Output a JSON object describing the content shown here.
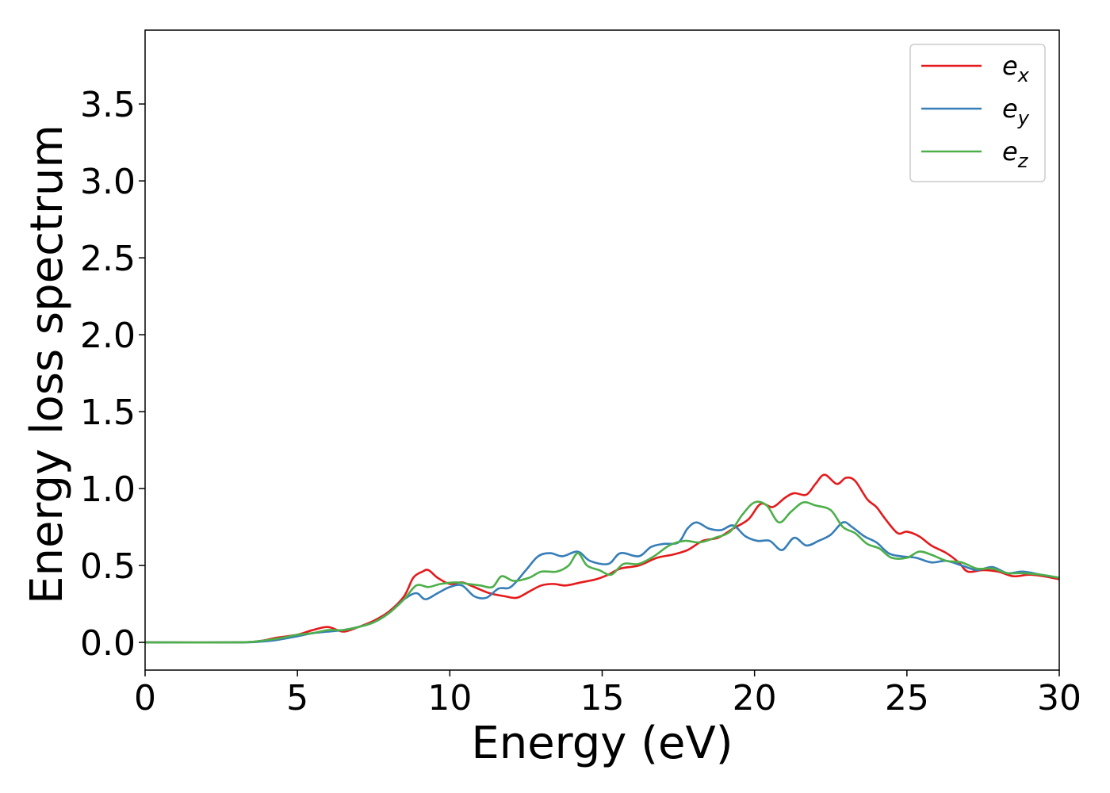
{
  "chart_data": {
    "type": "line",
    "xlabel": "Energy (eV)",
    "ylabel": "Energy loss spectrum",
    "xlim": [
      0,
      30
    ],
    "ylim": [
      -0.18,
      3.98
    ],
    "xticks": [
      0,
      5,
      10,
      15,
      20,
      25,
      30
    ],
    "yticks": [
      0.0,
      0.5,
      1.0,
      1.5,
      2.0,
      2.5,
      3.0,
      3.5
    ],
    "xtick_labels": [
      "0",
      "5",
      "10",
      "15",
      "20",
      "25",
      "30"
    ],
    "ytick_labels": [
      "0.0",
      "0.5",
      "1.0",
      "1.5",
      "2.0",
      "2.5",
      "3.0",
      "3.5"
    ],
    "grid": false,
    "legend_position": "top-right",
    "series": [
      {
        "name": "e",
        "subscript": "x",
        "color": "#e41a1c",
        "points": [
          [
            0,
            0
          ],
          [
            3,
            0
          ],
          [
            3.8,
            0.01
          ],
          [
            4.3,
            0.03
          ],
          [
            5,
            0.05
          ],
          [
            5.5,
            0.08
          ],
          [
            6,
            0.1
          ],
          [
            6.5,
            0.07
          ],
          [
            7,
            0.1
          ],
          [
            7.5,
            0.14
          ],
          [
            8,
            0.2
          ],
          [
            8.5,
            0.3
          ],
          [
            8.8,
            0.42
          ],
          [
            9.1,
            0.46
          ],
          [
            9.3,
            0.47
          ],
          [
            9.6,
            0.42
          ],
          [
            10,
            0.38
          ],
          [
            10.4,
            0.39
          ],
          [
            10.8,
            0.36
          ],
          [
            11.3,
            0.32
          ],
          [
            11.8,
            0.3
          ],
          [
            12.2,
            0.29
          ],
          [
            12.6,
            0.33
          ],
          [
            13,
            0.37
          ],
          [
            13.4,
            0.38
          ],
          [
            13.8,
            0.37
          ],
          [
            14.3,
            0.39
          ],
          [
            14.8,
            0.41
          ],
          [
            15.2,
            0.44
          ],
          [
            15.6,
            0.48
          ],
          [
            16.2,
            0.5
          ],
          [
            16.8,
            0.55
          ],
          [
            17.3,
            0.57
          ],
          [
            17.8,
            0.6
          ],
          [
            18.3,
            0.66
          ],
          [
            18.8,
            0.68
          ],
          [
            19.3,
            0.74
          ],
          [
            19.8,
            0.8
          ],
          [
            20.2,
            0.9
          ],
          [
            20.6,
            0.88
          ],
          [
            21,
            0.94
          ],
          [
            21.3,
            0.97
          ],
          [
            21.7,
            0.96
          ],
          [
            22,
            1.03
          ],
          [
            22.3,
            1.09
          ],
          [
            22.7,
            1.03
          ],
          [
            23,
            1.07
          ],
          [
            23.3,
            1.05
          ],
          [
            23.7,
            0.93
          ],
          [
            24,
            0.88
          ],
          [
            24.3,
            0.8
          ],
          [
            24.7,
            0.71
          ],
          [
            25,
            0.72
          ],
          [
            25.4,
            0.69
          ],
          [
            25.8,
            0.63
          ],
          [
            26.3,
            0.58
          ],
          [
            26.7,
            0.52
          ],
          [
            27,
            0.46
          ],
          [
            27.5,
            0.47
          ],
          [
            28,
            0.46
          ],
          [
            28.5,
            0.43
          ],
          [
            29,
            0.44
          ],
          [
            29.5,
            0.43
          ],
          [
            30,
            0.41
          ]
        ]
      },
      {
        "name": "e",
        "subscript": "y",
        "color": "#377eb8",
        "points": [
          [
            0,
            0
          ],
          [
            3,
            0
          ],
          [
            3.8,
            0.005
          ],
          [
            4.3,
            0.015
          ],
          [
            5,
            0.04
          ],
          [
            5.5,
            0.06
          ],
          [
            6,
            0.07
          ],
          [
            6.5,
            0.08
          ],
          [
            7,
            0.1
          ],
          [
            7.5,
            0.13
          ],
          [
            8,
            0.19
          ],
          [
            8.5,
            0.28
          ],
          [
            8.9,
            0.32
          ],
          [
            9.2,
            0.28
          ],
          [
            9.6,
            0.32
          ],
          [
            10,
            0.36
          ],
          [
            10.4,
            0.37
          ],
          [
            10.8,
            0.3
          ],
          [
            11.2,
            0.29
          ],
          [
            11.6,
            0.35
          ],
          [
            12,
            0.36
          ],
          [
            12.5,
            0.47
          ],
          [
            12.9,
            0.56
          ],
          [
            13.3,
            0.58
          ],
          [
            13.7,
            0.56
          ],
          [
            14.2,
            0.59
          ],
          [
            14.6,
            0.53
          ],
          [
            15.2,
            0.51
          ],
          [
            15.6,
            0.58
          ],
          [
            16.2,
            0.56
          ],
          [
            16.6,
            0.62
          ],
          [
            17,
            0.64
          ],
          [
            17.5,
            0.65
          ],
          [
            17.8,
            0.74
          ],
          [
            18.1,
            0.78
          ],
          [
            18.5,
            0.74
          ],
          [
            18.9,
            0.73
          ],
          [
            19.3,
            0.76
          ],
          [
            19.7,
            0.69
          ],
          [
            20.1,
            0.66
          ],
          [
            20.5,
            0.66
          ],
          [
            20.9,
            0.6
          ],
          [
            21.3,
            0.68
          ],
          [
            21.7,
            0.63
          ],
          [
            22.1,
            0.66
          ],
          [
            22.5,
            0.7
          ],
          [
            22.9,
            0.78
          ],
          [
            23.2,
            0.75
          ],
          [
            23.6,
            0.69
          ],
          [
            24,
            0.65
          ],
          [
            24.4,
            0.58
          ],
          [
            24.8,
            0.56
          ],
          [
            25.3,
            0.55
          ],
          [
            25.8,
            0.52
          ],
          [
            26.3,
            0.53
          ],
          [
            26.8,
            0.5
          ],
          [
            27.3,
            0.47
          ],
          [
            27.8,
            0.49
          ],
          [
            28.3,
            0.45
          ],
          [
            28.8,
            0.46
          ],
          [
            29.4,
            0.44
          ],
          [
            30,
            0.42
          ]
        ]
      },
      {
        "name": "e",
        "subscript": "z",
        "color": "#4daf4a",
        "points": [
          [
            0,
            0
          ],
          [
            3,
            0
          ],
          [
            3.8,
            0.01
          ],
          [
            4.5,
            0.03
          ],
          [
            5,
            0.05
          ],
          [
            5.5,
            0.06
          ],
          [
            6,
            0.08
          ],
          [
            6.5,
            0.08
          ],
          [
            7,
            0.1
          ],
          [
            7.5,
            0.13
          ],
          [
            8,
            0.19
          ],
          [
            8.5,
            0.28
          ],
          [
            8.9,
            0.37
          ],
          [
            9.3,
            0.36
          ],
          [
            9.7,
            0.38
          ],
          [
            10.2,
            0.39
          ],
          [
            10.6,
            0.38
          ],
          [
            11,
            0.37
          ],
          [
            11.4,
            0.36
          ],
          [
            11.7,
            0.43
          ],
          [
            12.1,
            0.4
          ],
          [
            12.6,
            0.42
          ],
          [
            13,
            0.46
          ],
          [
            13.5,
            0.46
          ],
          [
            13.9,
            0.5
          ],
          [
            14.2,
            0.58
          ],
          [
            14.5,
            0.5
          ],
          [
            14.9,
            0.47
          ],
          [
            15.3,
            0.44
          ],
          [
            15.7,
            0.51
          ],
          [
            16.2,
            0.51
          ],
          [
            16.7,
            0.56
          ],
          [
            17.2,
            0.63
          ],
          [
            17.7,
            0.66
          ],
          [
            18.2,
            0.65
          ],
          [
            18.7,
            0.68
          ],
          [
            19.2,
            0.72
          ],
          [
            19.6,
            0.83
          ],
          [
            20,
            0.91
          ],
          [
            20.4,
            0.89
          ],
          [
            20.8,
            0.78
          ],
          [
            21.2,
            0.85
          ],
          [
            21.6,
            0.91
          ],
          [
            22,
            0.89
          ],
          [
            22.5,
            0.86
          ],
          [
            22.9,
            0.75
          ],
          [
            23.3,
            0.71
          ],
          [
            23.7,
            0.64
          ],
          [
            24.1,
            0.61
          ],
          [
            24.5,
            0.55
          ],
          [
            25,
            0.55
          ],
          [
            25.4,
            0.59
          ],
          [
            25.8,
            0.57
          ],
          [
            26.3,
            0.53
          ],
          [
            26.8,
            0.52
          ],
          [
            27.3,
            0.48
          ],
          [
            27.8,
            0.48
          ],
          [
            28.3,
            0.45
          ],
          [
            28.8,
            0.45
          ],
          [
            29.4,
            0.44
          ],
          [
            30,
            0.42
          ]
        ]
      }
    ]
  }
}
